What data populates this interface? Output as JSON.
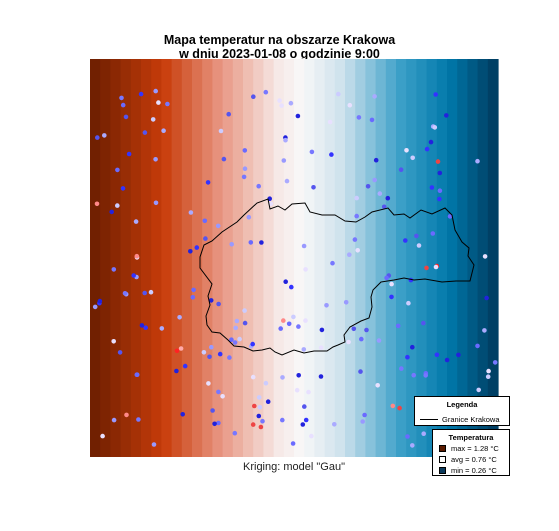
{
  "title_line1": "Mapa temperatur na obszarze Krakowa",
  "title_line2": "w dniu 2023-01-08 o godzinie 9:00",
  "subtitle": "Kriging: model \"Gau\"",
  "legend": {
    "title": "Legenda",
    "boundary_label": "Granice Krakowa",
    "boundary_color": "#000000"
  },
  "temperature_legend": {
    "title": "Temperatura",
    "items": [
      {
        "label": "max =  1.28 °C",
        "color": "#5a1a00"
      },
      {
        "label": "avg =  0.76 °C",
        "color": "#ffffff"
      },
      {
        "label": "min =  0.26 °C",
        "color": "#0b3a5c"
      }
    ]
  },
  "colors": {
    "gradient_left": "#6b1e00",
    "gradient_mid": "#f7f7f7",
    "gradient_right": "#003a5d"
  }
}
